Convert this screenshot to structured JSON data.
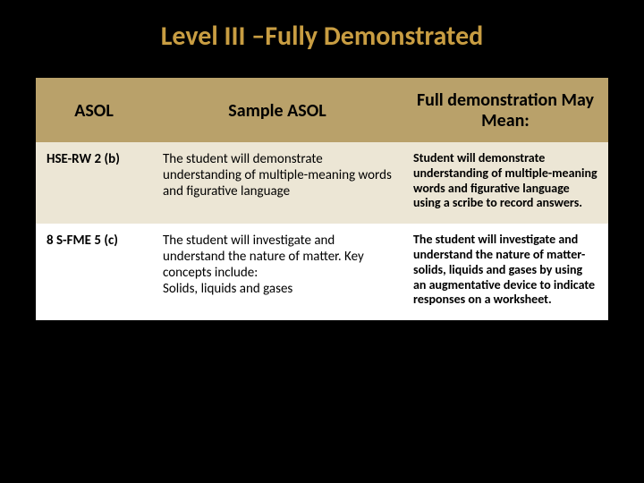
{
  "title": "Level III –Fully Demonstrated",
  "title_color": "#c89d42",
  "header_bg": "#b9a16a",
  "row_colors": [
    "#ece6d5",
    "#ffffff"
  ],
  "columns": [
    "ASOL",
    "Sample ASOL",
    "Full demonstration May Mean:"
  ],
  "rows": [
    {
      "code": "HSE-RW 2 (b)",
      "sample": "The student will demonstrate understanding of multiple-meaning words and figurative language",
      "demo": "Student will demonstrate understanding of multiple-meaning words and figurative language using a scribe to record answers."
    },
    {
      "code": "8 S-FME 5 (c)",
      "sample": "The student  will investigate and understand the nature of matter.  Key concepts include:\nSolids, liquids and gases",
      "demo": "The student will investigate and understand the nature of matter- solids, liquids and gases by using an augmentative device to indicate responses on a worksheet."
    }
  ]
}
